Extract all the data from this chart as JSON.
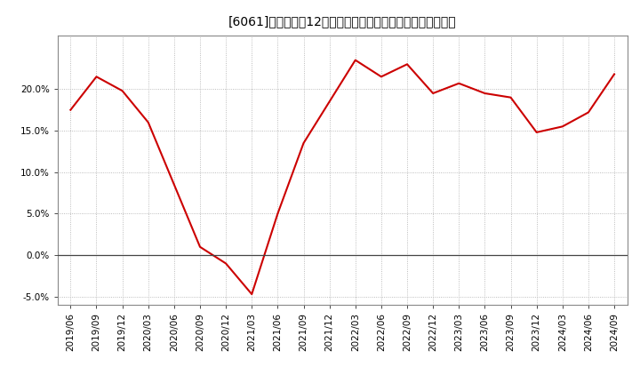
{
  "title_prefix": "[6061]　",
  "title_main": "売上高の12か月移動合計の対前年同期増減率の推移",
  "line_color": "#cc0000",
  "line_width": 1.5,
  "background_color": "#ffffff",
  "plot_bg_color": "#ffffff",
  "grid_color": "#aaaaaa",
  "zero_line_color": "#444444",
  "dates": [
    "2019-06",
    "2019-09",
    "2019-12",
    "2020-03",
    "2020-06",
    "2020-09",
    "2020-12",
    "2021-03",
    "2021-06",
    "2021-09",
    "2021-12",
    "2022-03",
    "2022-06",
    "2022-09",
    "2022-12",
    "2023-03",
    "2023-06",
    "2023-09",
    "2023-12",
    "2024-03",
    "2024-06",
    "2024-09"
  ],
  "values": [
    0.175,
    0.215,
    0.198,
    0.16,
    0.085,
    0.01,
    -0.01,
    -0.047,
    0.05,
    0.135,
    0.185,
    0.235,
    0.215,
    0.23,
    0.195,
    0.207,
    0.195,
    0.19,
    0.148,
    0.155,
    0.172,
    0.218
  ],
  "ylim": [
    -0.06,
    0.265
  ],
  "yticks": [
    -0.05,
    0.0,
    0.05,
    0.1,
    0.15,
    0.2
  ],
  "xtick_labels": [
    "2019/06",
    "2019/09",
    "2019/12",
    "2020/03",
    "2020/06",
    "2020/09",
    "2020/12",
    "2021/03",
    "2021/06",
    "2021/09",
    "2021/12",
    "2022/03",
    "2022/06",
    "2022/09",
    "2022/12",
    "2023/03",
    "2023/06",
    "2023/09",
    "2023/12",
    "2024/03",
    "2024/06",
    "2024/09"
  ],
  "title_fontsize": 11,
  "tick_fontsize": 7.5,
  "figsize": [
    7.2,
    4.4
  ],
  "dpi": 100
}
